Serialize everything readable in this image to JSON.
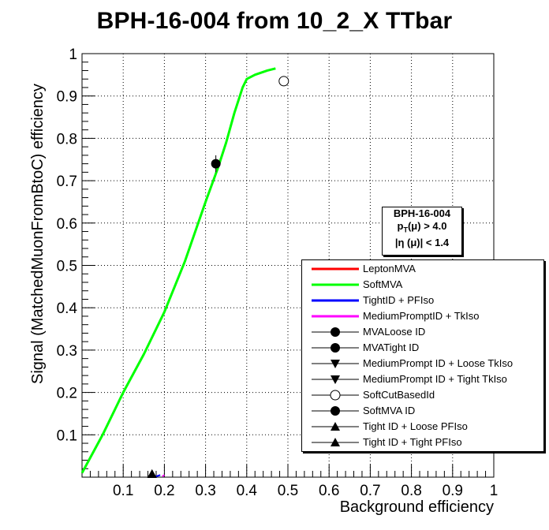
{
  "chart_data": {
    "type": "line",
    "title": "BPH-16-004 from 10_2_X TTbar",
    "xlabel": "Background efficiency",
    "ylabel": "Signal (MatchedMuonFromBtoC) efficiency",
    "xlim": [
      0,
      1
    ],
    "ylim": [
      0,
      1
    ],
    "x_ticks": [
      "0.1",
      "0.2",
      "0.3",
      "0.4",
      "0.5",
      "0.6",
      "0.7",
      "0.8",
      "0.9",
      "1"
    ],
    "y_ticks": [
      "0.1",
      "0.2",
      "0.3",
      "0.4",
      "0.5",
      "0.6",
      "0.7",
      "0.8",
      "0.9",
      "1"
    ],
    "grid": true,
    "legend_position": "bottom-right",
    "cut_box": [
      "BPH-16-004",
      "p_T(μ) > 4.0",
      "|η (μ)| < 1.4"
    ],
    "series": [
      {
        "name": "LeptonMVA",
        "style": "line",
        "color": "#ff0000",
        "x": [],
        "y": []
      },
      {
        "name": "SoftMVA",
        "style": "line",
        "color": "#00ff00",
        "x": [
          0.0,
          0.05,
          0.1,
          0.15,
          0.2,
          0.25,
          0.3,
          0.33,
          0.35,
          0.37,
          0.39,
          0.4,
          0.42,
          0.45,
          0.47
        ],
        "y": [
          0.01,
          0.1,
          0.2,
          0.29,
          0.39,
          0.51,
          0.65,
          0.73,
          0.79,
          0.86,
          0.92,
          0.94,
          0.95,
          0.96,
          0.965
        ]
      },
      {
        "name": "TightID + PFIso",
        "style": "line",
        "color": "#0000ff",
        "x": [],
        "y": []
      },
      {
        "name": "MediumPromptID + TkIso",
        "style": "line",
        "color": "#ff00ff",
        "x": [],
        "y": []
      },
      {
        "name": "MVALoose ID",
        "style": "marker",
        "marker": "circle",
        "x": [],
        "y": []
      },
      {
        "name": "MVATight ID",
        "style": "marker",
        "marker": "circle",
        "x": [],
        "y": []
      },
      {
        "name": "MediumPrompt ID + Loose TkIso",
        "style": "marker",
        "marker": "triangle-down",
        "x": [],
        "y": []
      },
      {
        "name": "MediumPrompt ID + Tight TkIso",
        "style": "marker",
        "marker": "triangle-down",
        "x": [],
        "y": []
      },
      {
        "name": "SoftCutBasedId",
        "style": "marker",
        "marker": "open-circle",
        "x": [
          0.49
        ],
        "y": [
          0.935
        ]
      },
      {
        "name": "SoftMVA ID",
        "style": "marker",
        "marker": "circle",
        "x": [
          0.325
        ],
        "y": [
          0.74
        ],
        "yerr": [
          0.02
        ]
      },
      {
        "name": "Tight ID + Loose PFIso",
        "style": "marker",
        "marker": "triangle-up",
        "x": [
          0.17
        ],
        "y": [
          0.0
        ]
      },
      {
        "name": "Tight ID + Tight PFIso",
        "style": "marker",
        "marker": "triangle-up",
        "x": [
          0.17
        ],
        "y": [
          0.0
        ]
      }
    ]
  }
}
